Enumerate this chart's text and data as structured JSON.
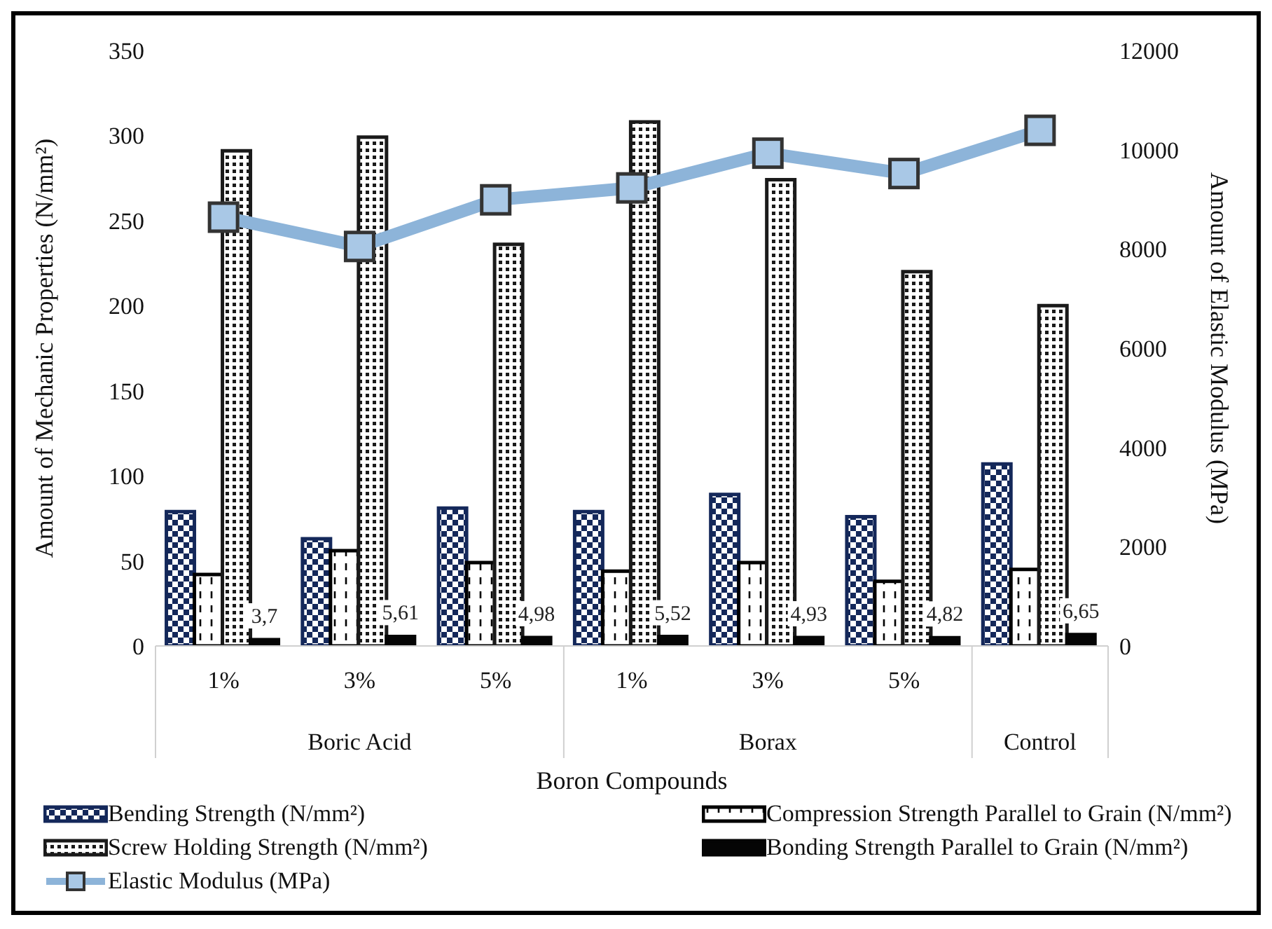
{
  "chart_data": {
    "type": "bar",
    "categories": [
      "1%",
      "3%",
      "5%",
      "1%",
      "3%",
      "5%",
      null
    ],
    "annotations": [
      "Boric Acid",
      "Borax",
      "Control"
    ],
    "xlabel": "Boron Compounds",
    "ylabel": "Amount of Mechanic Properties (N/mm²)",
    "y2label": "Amount of Elastic Modulus (MPa)",
    "ylim": [
      0,
      350
    ],
    "yticks": [
      0,
      50,
      100,
      150,
      200,
      250,
      300,
      350
    ],
    "y2lim": [
      0,
      12000
    ],
    "y2ticks": [
      0,
      2000,
      4000,
      6000,
      8000,
      10000,
      12000
    ],
    "grid": false,
    "legend": "bottom",
    "series": [
      {
        "name": "Bending Strength (N/mm²)",
        "color": "#14285a",
        "values": [
          79,
          63,
          81,
          79,
          89,
          76,
          107
        ]
      },
      {
        "name": "Compression Strength Parallel to Grain (N/mm²)",
        "color": "#000000",
        "values": [
          42,
          56,
          49,
          44,
          49,
          38,
          45
        ]
      },
      {
        "name": "Screw Holding Strength (N/mm²)",
        "color": "#1a1a1a",
        "values": [
          291,
          299,
          236,
          308,
          274,
          220,
          200
        ]
      },
      {
        "name": "Bonding Strength Parallel to Grain (N/mm²)",
        "color": "#050505",
        "values": [
          3.7,
          5.61,
          4.98,
          5.52,
          4.93,
          4.82,
          6.65
        ],
        "value_labels": [
          "3,7",
          "5,61",
          "4,98",
          "5,52",
          "4,93",
          "4,82",
          "6,65"
        ]
      },
      {
        "name": "Elastic Modulus (MPa)",
        "type": "line",
        "axis": "y2",
        "color": "#8db4d9",
        "marker": "square",
        "values": [
          8640,
          8050,
          8990,
          9230,
          9930,
          9520,
          10390
        ]
      }
    ]
  }
}
